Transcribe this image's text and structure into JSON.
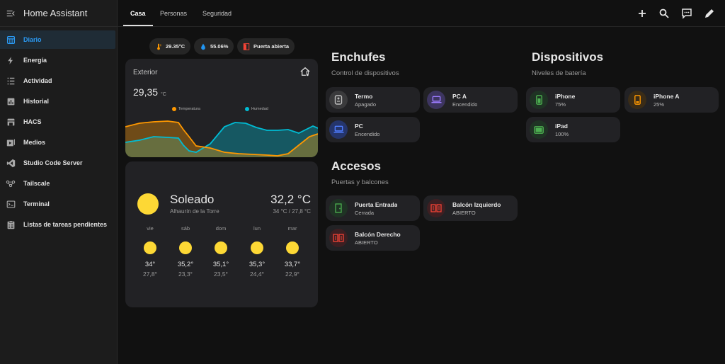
{
  "app": {
    "title": "Home Assistant"
  },
  "sidebar": {
    "items": [
      {
        "label": "Diario",
        "icon": "diary-icon",
        "active": true
      },
      {
        "label": "Energía",
        "icon": "lightning-icon"
      },
      {
        "label": "Actividad",
        "icon": "activity-list-icon"
      },
      {
        "label": "Historial",
        "icon": "chart-bar-icon"
      },
      {
        "label": "HACS",
        "icon": "hacs-store-icon"
      },
      {
        "label": "Medios",
        "icon": "media-play-icon"
      },
      {
        "label": "Studio Code Server",
        "icon": "vscode-icon"
      },
      {
        "label": "Tailscale",
        "icon": "network-icon"
      },
      {
        "label": "Terminal",
        "icon": "terminal-icon"
      },
      {
        "label": "Listas de tareas pendientes",
        "icon": "clipboard-list-icon"
      }
    ]
  },
  "tabs": [
    {
      "label": "Casa",
      "active": true
    },
    {
      "label": "Personas"
    },
    {
      "label": "Seguridad"
    }
  ],
  "toolbar": {
    "icons": [
      "plus-icon",
      "search-icon",
      "assist-chat-icon",
      "pencil-icon"
    ]
  },
  "chips": [
    {
      "label": "29.35°C",
      "icon": "thermometer-icon",
      "color": "#ff9800"
    },
    {
      "label": "55.06%",
      "icon": "water-drop-icon",
      "color": "#2196f3"
    },
    {
      "label": "Puerta abierta",
      "icon": "door-open-icon",
      "color": "#f44336"
    }
  ],
  "exterior": {
    "title": "Exterior",
    "value": "29,35",
    "unit": "°C",
    "legend": [
      {
        "label": "Temperatura",
        "color": "#ff9800"
      },
      {
        "label": "Humedad",
        "color": "#00bcd4"
      }
    ]
  },
  "weather": {
    "condition": "Soleado",
    "location": "Alhaurín de la Torre",
    "temp": "32,2 °C",
    "range": "34 °C / 27,8 °C",
    "forecast": [
      {
        "day": "vie",
        "high": "34°",
        "low": "27,8°"
      },
      {
        "day": "sáb",
        "high": "35,2°",
        "low": "23,3°"
      },
      {
        "day": "dom",
        "high": "35,1°",
        "low": "23,5°"
      },
      {
        "day": "lun",
        "high": "35,3°",
        "low": "24,4°"
      },
      {
        "day": "mar",
        "high": "33,7°",
        "low": "22,9°"
      }
    ]
  },
  "enchufes": {
    "title": "Enchufes",
    "subtitle": "Control de dispositivos",
    "tiles": [
      {
        "name": "Termo",
        "state": "Apagado",
        "icon": "water-heater-icon"
      },
      {
        "name": "PC A",
        "state": "Encendido",
        "icon": "laptop-icon"
      },
      {
        "name": "PC",
        "state": "Encendido",
        "icon": "laptop-icon"
      }
    ]
  },
  "dispositivos": {
    "title": "Dispositivos",
    "subtitle": "Niveles de batería",
    "tiles": [
      {
        "name": "iPhone",
        "state": "75%",
        "icon": "phone-battery-icon"
      },
      {
        "name": "iPhone A",
        "state": "25%",
        "icon": "phone-battery-icon"
      },
      {
        "name": "iPad",
        "state": "100%",
        "icon": "tablet-battery-icon"
      }
    ]
  },
  "accesos": {
    "title": "Accesos",
    "subtitle": "Puertas y balcones",
    "tiles": [
      {
        "name": "Puerta Entrada",
        "state": "Cerrada",
        "icon": "door-closed-icon"
      },
      {
        "name": "Balcón Izquierdo",
        "state": "ABIERTO",
        "icon": "balcony-door-open-icon"
      },
      {
        "name": "Balcón Derecho",
        "state": "ABIERTO",
        "icon": "balcony-door-open-icon"
      }
    ]
  }
}
